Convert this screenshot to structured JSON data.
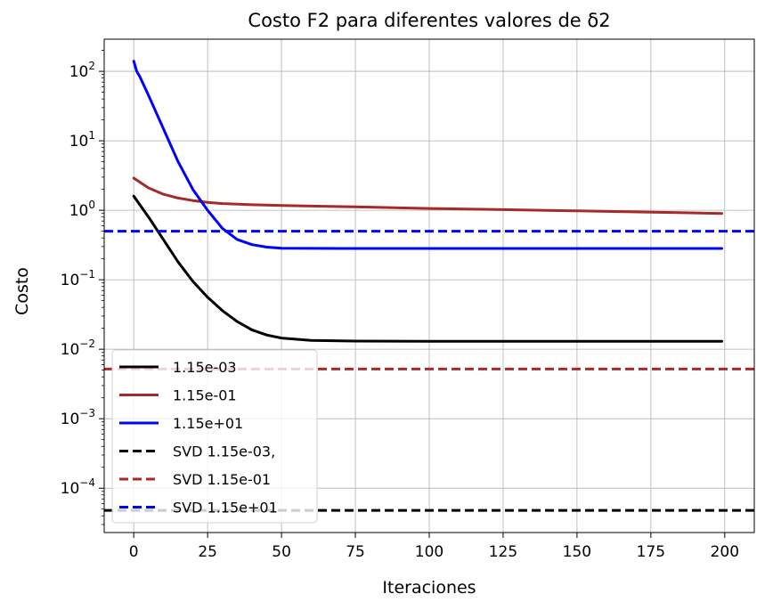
{
  "chart_data": {
    "type": "line",
    "title": "Costo F2 para diferentes valores de δ2",
    "xlabel": "Iteraciones",
    "ylabel": "Costo",
    "yscale": "log",
    "xlim": [
      -10,
      210
    ],
    "ylim": [
      2.3e-05,
      290
    ],
    "grid": true,
    "legend_position": "lower-left",
    "x_ticks": [
      0,
      25,
      50,
      75,
      100,
      125,
      150,
      175,
      200
    ],
    "x_tick_labels": [
      "0",
      "25",
      "50",
      "75",
      "100",
      "125",
      "150",
      "175",
      "200"
    ],
    "y_ticks": [
      0.0001,
      0.001,
      0.01,
      0.1,
      1,
      10,
      100
    ],
    "y_tick_labels": [
      {
        "base": "10",
        "exp": "−4"
      },
      {
        "base": "10",
        "exp": "−3"
      },
      {
        "base": "10",
        "exp": "−2"
      },
      {
        "base": "10",
        "exp": "−1"
      },
      {
        "base": "10",
        "exp": "0"
      },
      {
        "base": "10",
        "exp": "1"
      },
      {
        "base": "10",
        "exp": "2"
      }
    ],
    "series": [
      {
        "name": "1.15e-03",
        "color": "#000000",
        "style": "solid",
        "x": [
          0,
          5,
          10,
          15,
          20,
          25,
          30,
          35,
          40,
          45,
          50,
          60,
          75,
          100,
          150,
          199
        ],
        "y": [
          1.6,
          0.8,
          0.38,
          0.18,
          0.095,
          0.056,
          0.036,
          0.025,
          0.019,
          0.016,
          0.0145,
          0.0134,
          0.0131,
          0.013,
          0.013,
          0.013
        ]
      },
      {
        "name": "1.15e-01",
        "color": "#a52a2a",
        "style": "solid",
        "x": [
          0,
          5,
          10,
          15,
          20,
          25,
          30,
          40,
          50,
          75,
          100,
          125,
          150,
          175,
          199
        ],
        "y": [
          2.9,
          2.1,
          1.7,
          1.5,
          1.38,
          1.3,
          1.25,
          1.2,
          1.17,
          1.12,
          1.06,
          1.02,
          0.98,
          0.94,
          0.9
        ]
      },
      {
        "name": "1.15e+01",
        "color": "#0000ff",
        "style": "solid",
        "x": [
          0,
          1,
          2,
          5,
          10,
          15,
          20,
          25,
          30,
          35,
          40,
          45,
          50,
          60,
          75,
          100,
          150,
          199
        ],
        "y": [
          140,
          100,
          85,
          45,
          15,
          5.0,
          2.0,
          1.0,
          0.55,
          0.38,
          0.32,
          0.295,
          0.285,
          0.283,
          0.282,
          0.282,
          0.282,
          0.282
        ]
      },
      {
        "name": "SVD 1.15e-03,",
        "color": "#000000",
        "style": "dashed",
        "hline": 4.8e-05
      },
      {
        "name": "SVD 1.15e-01",
        "color": "#a52a2a",
        "style": "dashed",
        "hline": 0.0052
      },
      {
        "name": "SVD 1.15e+01",
        "color": "#0000ff",
        "style": "dashed",
        "hline": 0.5
      }
    ]
  }
}
